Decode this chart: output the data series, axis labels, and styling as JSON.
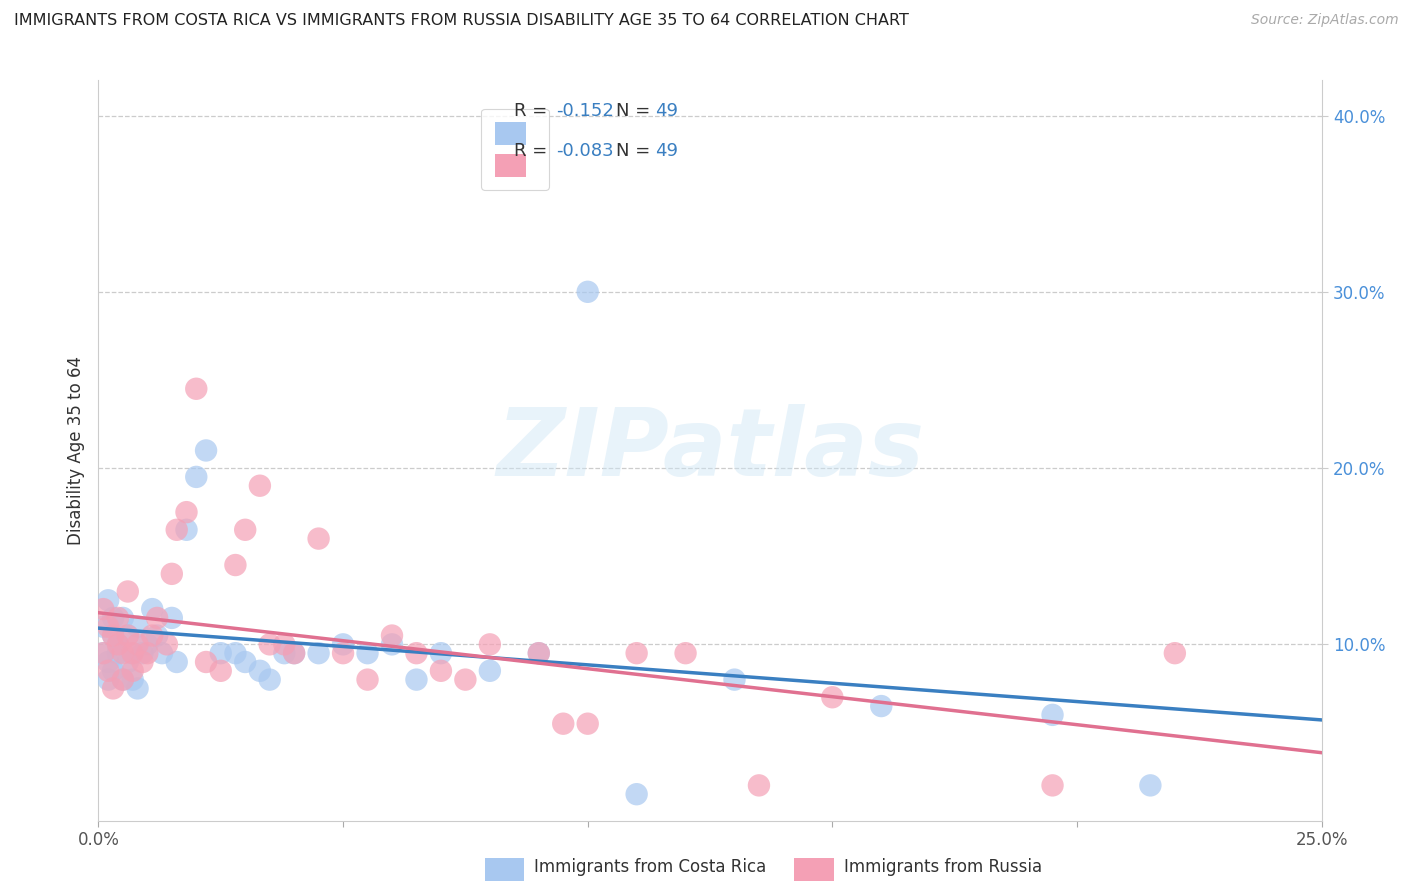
{
  "title": "IMMIGRANTS FROM COSTA RICA VS IMMIGRANTS FROM RUSSIA DISABILITY AGE 35 TO 64 CORRELATION CHART",
  "source": "Source: ZipAtlas.com",
  "ylabel": "Disability Age 35 to 64",
  "xlim": [
    0.0,
    0.25
  ],
  "ylim": [
    0.0,
    0.42
  ],
  "color_costa_rica": "#a8c8f0",
  "color_russia": "#f4a0b5",
  "line_color_costa_rica": "#3a7fc1",
  "line_color_russia": "#e07090",
  "watermark_text": "ZIPatlas",
  "r_cr": -0.152,
  "r_ru": -0.083,
  "n_cr": 49,
  "n_ru": 49,
  "costa_rica_x": [
    0.001,
    0.001,
    0.002,
    0.002,
    0.002,
    0.003,
    0.003,
    0.003,
    0.004,
    0.004,
    0.005,
    0.005,
    0.006,
    0.006,
    0.007,
    0.007,
    0.008,
    0.008,
    0.009,
    0.01,
    0.011,
    0.012,
    0.013,
    0.015,
    0.016,
    0.018,
    0.02,
    0.022,
    0.025,
    0.028,
    0.03,
    0.033,
    0.035,
    0.038,
    0.04,
    0.045,
    0.05,
    0.055,
    0.06,
    0.065,
    0.07,
    0.08,
    0.09,
    0.1,
    0.11,
    0.13,
    0.16,
    0.195,
    0.215
  ],
  "costa_rica_y": [
    0.11,
    0.095,
    0.125,
    0.09,
    0.08,
    0.105,
    0.115,
    0.085,
    0.1,
    0.095,
    0.115,
    0.08,
    0.09,
    0.105,
    0.095,
    0.08,
    0.11,
    0.075,
    0.095,
    0.1,
    0.12,
    0.105,
    0.095,
    0.115,
    0.09,
    0.165,
    0.195,
    0.21,
    0.095,
    0.095,
    0.09,
    0.085,
    0.08,
    0.095,
    0.095,
    0.095,
    0.1,
    0.095,
    0.1,
    0.08,
    0.095,
    0.085,
    0.095,
    0.3,
    0.015,
    0.08,
    0.065,
    0.06,
    0.02
  ],
  "russia_x": [
    0.001,
    0.001,
    0.002,
    0.002,
    0.003,
    0.003,
    0.004,
    0.004,
    0.005,
    0.005,
    0.006,
    0.006,
    0.007,
    0.007,
    0.008,
    0.009,
    0.01,
    0.011,
    0.012,
    0.014,
    0.015,
    0.016,
    0.018,
    0.02,
    0.022,
    0.025,
    0.028,
    0.03,
    0.033,
    0.035,
    0.038,
    0.04,
    0.045,
    0.05,
    0.055,
    0.06,
    0.065,
    0.07,
    0.075,
    0.08,
    0.09,
    0.095,
    0.1,
    0.11,
    0.12,
    0.135,
    0.15,
    0.195,
    0.22
  ],
  "russia_y": [
    0.12,
    0.095,
    0.11,
    0.085,
    0.105,
    0.075,
    0.1,
    0.115,
    0.095,
    0.08,
    0.105,
    0.13,
    0.085,
    0.095,
    0.1,
    0.09,
    0.095,
    0.105,
    0.115,
    0.1,
    0.14,
    0.165,
    0.175,
    0.245,
    0.09,
    0.085,
    0.145,
    0.165,
    0.19,
    0.1,
    0.1,
    0.095,
    0.16,
    0.095,
    0.08,
    0.105,
    0.095,
    0.085,
    0.08,
    0.1,
    0.095,
    0.055,
    0.055,
    0.095,
    0.095,
    0.02,
    0.07,
    0.02,
    0.095
  ]
}
